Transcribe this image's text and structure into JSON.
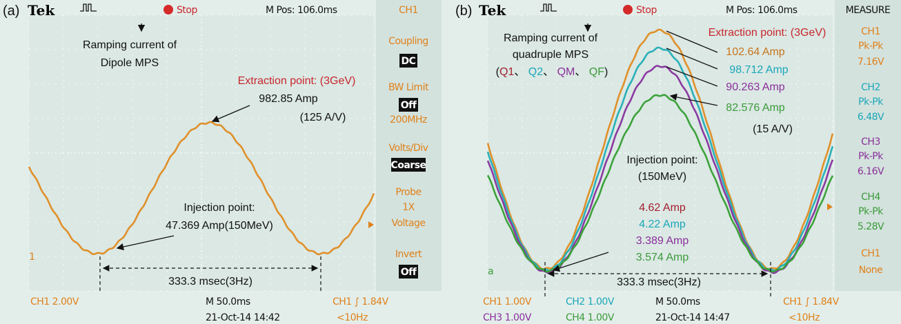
{
  "panels": [
    {
      "label": "(a)",
      "brand": "Tek",
      "trigger": "Stop",
      "mpos": "M Pos: 106.0ms",
      "menu": [
        "CH1",
        "Coupling",
        "DC",
        "BW Limit",
        "Off",
        "200MHz",
        "Volts/Div",
        "Coarse",
        "Probe",
        "1X",
        "Voltage",
        "Invert",
        "Off"
      ],
      "marker": "1",
      "annotations": [
        "Ramping current of",
        "Dipole MPS",
        "Extraction point: (3GeV)",
        "982.85 Amp",
        "(125 A/V)",
        "Injection point:",
        "47.369 Amp(150MeV)",
        "333.3 msec(3Hz)"
      ],
      "footer": [
        "CH1  2.00V",
        "M 50.0ms",
        "CH1 ∫ 1.84V",
        "21-Oct-14 14:42",
        "<10Hz"
      ]
    },
    {
      "label": "(b)",
      "brand": "Tek",
      "trigger": "Stop",
      "mpos": "M Pos: 106.0ms",
      "menu": [
        "MEASURE",
        "CH1",
        "Pk-Pk",
        "7.16V",
        "CH2",
        "Pk-Pk",
        "6.48V",
        "CH3",
        "Pk-Pk",
        "6.16V",
        "CH4",
        "Pk-Pk",
        "5.28V",
        "CH1",
        "None"
      ],
      "marker": "a",
      "annotations": [
        "Ramping current of",
        "quadruple MPS",
        "Extraction point: (3GeV)",
        "102.64 Amp",
        "98.712 Amp",
        "90.263 Amp",
        "82.576 Amp",
        "(15 A/V)",
        "Injection point:",
        "(150MeV)",
        "4.62 Amp",
        "4.22 Amp",
        "3.389 Amp",
        "3.574 Amp",
        "333.3 msec(3Hz)"
      ],
      "magnets": [
        "(",
        "Q1",
        "、 ",
        "Q2",
        "、 ",
        "QM",
        "、 ",
        "QF",
        ")"
      ],
      "footer": [
        "CH1  1.00V",
        "CH2  1.00V",
        "M 50.0ms",
        "CH1 ∫ 1.84V",
        "CH3  1.00V",
        "CH4  1.00V",
        "21-Oct-14 14:47",
        "<10Hz"
      ]
    }
  ]
}
